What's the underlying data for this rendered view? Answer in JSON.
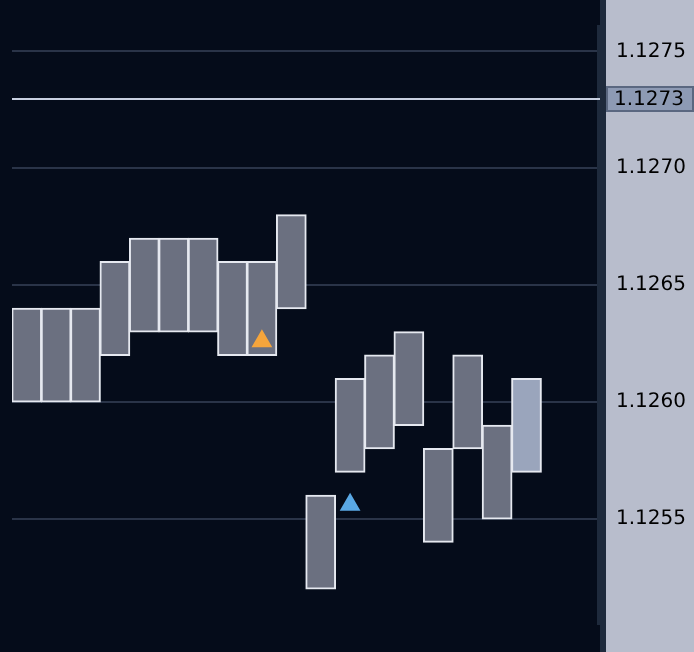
{
  "chart_data": {
    "type": "bar",
    "categories": [
      null,
      null,
      null,
      null,
      null,
      null,
      null,
      null,
      null,
      null,
      null,
      null,
      null,
      null,
      null,
      null,
      null,
      null,
      null,
      null
    ],
    "series": [
      {
        "color": "#6b7080",
        "colors": [
          "#6b7080",
          "#6b7080",
          "#6b7080",
          "#6b7080",
          "#6b7080",
          "#6b7080",
          "#6b7080",
          "#6b7080",
          "#6b7080",
          "#6b7080",
          "#6b7080",
          "#6b7080",
          "#6b7080",
          "#6b7080",
          "#6b7080",
          "#6b7080",
          "#6b7080",
          "#9aa5bc",
          null,
          null
        ],
        "base": [
          1.126,
          1.126,
          1.126,
          1.1262,
          1.1263,
          1.1263,
          1.1263,
          1.1262,
          1.1262,
          1.1264,
          1.1252,
          1.1257,
          1.1258,
          1.1259,
          1.1254,
          1.1258,
          1.1255,
          1.1257,
          null,
          null
        ],
        "values": [
          0.0004,
          0.0004,
          0.0004,
          0.0004,
          0.0004,
          0.0004,
          0.0004,
          0.0004,
          0.0004,
          0.0004,
          0.0004,
          0.0004,
          0.0004,
          0.0004,
          0.0004,
          0.0004,
          0.0004,
          0.0004,
          null,
          null
        ]
      },
      {
        "type": "scatter",
        "color": "#f5a53c",
        "marker": "triangle",
        "values": [
          null,
          null,
          null,
          null,
          null,
          null,
          null,
          null,
          1.12626,
          null,
          null,
          null,
          null,
          null,
          null,
          null,
          null,
          null,
          null,
          null
        ]
      },
      {
        "type": "scatter",
        "color": "#5aa9e6",
        "marker": "triangle",
        "values": [
          null,
          null,
          null,
          null,
          null,
          null,
          null,
          null,
          null,
          null,
          null,
          1.12556,
          null,
          null,
          null,
          null,
          null,
          null,
          null,
          null
        ]
      }
    ],
    "ylim": [
      1.12505,
      1.1276
    ],
    "yticks": [
      1.1255,
      {
        "value": 1.126,
        "label": "1.1260"
      },
      1.1265,
      {
        "value": 1.127,
        "label": "1.1270"
      },
      1.1275
    ],
    "tick_labels": "y",
    "grid": "y",
    "legend": false,
    "ref_lines": [
      {
        "axis": "y",
        "value": 1.1273,
        "label": "1.1273",
        "color": "#c8d0e0"
      }
    ]
  }
}
